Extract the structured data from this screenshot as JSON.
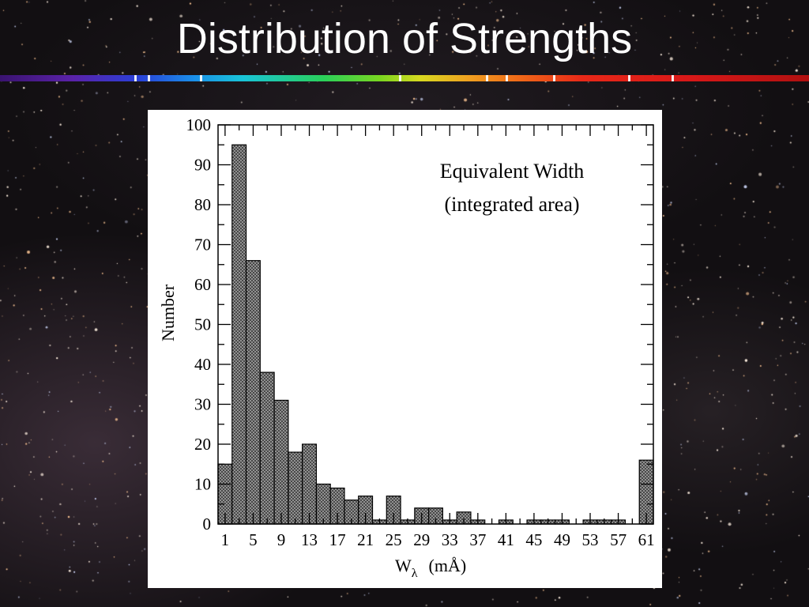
{
  "slide": {
    "title": "Distribution of Strengths"
  },
  "colors": {
    "background": "#120f12",
    "title_text": "#ffffff",
    "bar_fill": "#a0a0a0",
    "bar_stroke": "#000000"
  },
  "chart_data": {
    "type": "bar",
    "annotation_lines": [
      "Equivalent Width",
      "(integrated area)"
    ],
    "xlabel_main": "W",
    "xlabel_sub": "λ",
    "xlabel_units": "(mÅ)",
    "ylabel": "Number",
    "bin_width": 2,
    "x_start": 0,
    "xlim": [
      0,
      62
    ],
    "ylim": [
      0,
      100
    ],
    "x_tick_labels": [
      "1",
      "5",
      "9",
      "13",
      "17",
      "21",
      "25",
      "29",
      "33",
      "37",
      "41",
      "45",
      "49",
      "53",
      "57",
      "61"
    ],
    "x_tick_values": [
      1,
      5,
      9,
      13,
      17,
      21,
      25,
      29,
      33,
      37,
      41,
      45,
      49,
      53,
      57,
      61
    ],
    "y_tick_values": [
      0,
      10,
      20,
      30,
      40,
      50,
      60,
      70,
      80,
      90,
      100
    ],
    "y_tick_labels": [
      "0",
      "10",
      "20",
      "30",
      "40",
      "50",
      "60",
      "70",
      "80",
      "90",
      "100"
    ],
    "values": [
      15,
      95,
      66,
      38,
      31,
      18,
      20,
      10,
      9,
      6,
      7,
      1,
      7,
      1,
      4,
      4,
      1,
      3,
      1,
      0,
      1,
      0,
      1,
      1,
      1,
      0,
      1,
      1,
      1,
      0,
      16
    ],
    "grid": false,
    "fill_pattern": "crosshatch"
  }
}
